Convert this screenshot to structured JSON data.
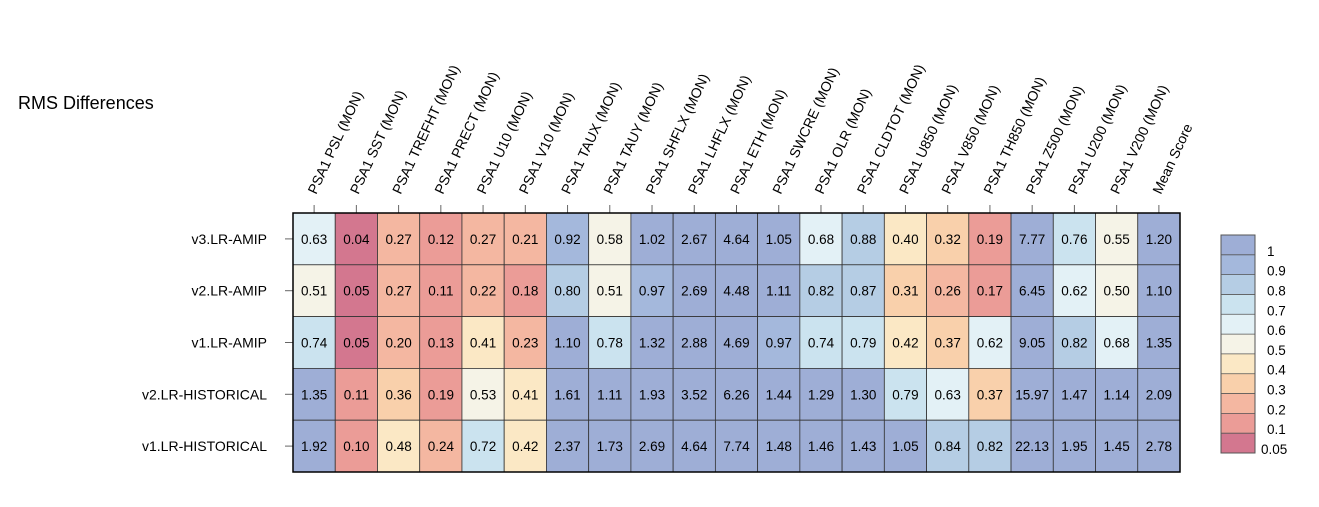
{
  "chart_data": {
    "type": "heatmap",
    "title": "RMS Differences",
    "columns": [
      "PSA1 PSL (MON)",
      "PSA1 SST (MON)",
      "PSA1 TREFHT (MON)",
      "PSA1 PRECT (MON)",
      "PSA1 U10 (MON)",
      "PSA1 V10 (MON)",
      "PSA1 TAUX (MON)",
      "PSA1 TAUY (MON)",
      "PSA1 SHFLX (MON)",
      "PSA1 LHFLX (MON)",
      "PSA1 ETH (MON)",
      "PSA1 SWCRE (MON)",
      "PSA1 OLR (MON)",
      "PSA1 CLDTOT (MON)",
      "PSA1 U850 (MON)",
      "PSA1 V850 (MON)",
      "PSA1 TH850 (MON)",
      "PSA1 Z500 (MON)",
      "PSA1 U200 (MON)",
      "PSA1 V200 (MON)",
      "Mean Score"
    ],
    "rows": [
      "v3.LR-AMIP",
      "v2.LR-AMIP",
      "v1.LR-AMIP",
      "v2.LR-HISTORICAL",
      "v1.LR-HISTORICAL"
    ],
    "values": [
      [
        "0.63",
        "0.04",
        "0.27",
        "0.12",
        "0.27",
        "0.21",
        "0.92",
        "0.58",
        "1.02",
        "2.67",
        "4.64",
        "1.05",
        "0.68",
        "0.88",
        "0.40",
        "0.32",
        "0.19",
        "7.77",
        "0.76",
        "0.55",
        "1.20"
      ],
      [
        "0.51",
        "0.05",
        "0.27",
        "0.11",
        "0.22",
        "0.18",
        "0.80",
        "0.51",
        "0.97",
        "2.69",
        "4.48",
        "1.11",
        "0.82",
        "0.87",
        "0.31",
        "0.26",
        "0.17",
        "6.45",
        "0.62",
        "0.50",
        "1.10"
      ],
      [
        "0.74",
        "0.05",
        "0.20",
        "0.13",
        "0.41",
        "0.23",
        "1.10",
        "0.78",
        "1.32",
        "2.88",
        "4.69",
        "0.97",
        "0.74",
        "0.79",
        "0.42",
        "0.37",
        "0.62",
        "9.05",
        "0.82",
        "0.68",
        "1.35"
      ],
      [
        "1.35",
        "0.11",
        "0.36",
        "0.19",
        "0.53",
        "0.41",
        "1.61",
        "1.11",
        "1.93",
        "3.52",
        "6.26",
        "1.44",
        "1.29",
        "1.30",
        "0.79",
        "0.63",
        "0.37",
        "15.97",
        "1.47",
        "1.14",
        "2.09"
      ],
      [
        "1.92",
        "0.10",
        "0.48",
        "0.24",
        "0.72",
        "0.42",
        "2.37",
        "1.73",
        "2.69",
        "4.64",
        "7.74",
        "1.48",
        "1.46",
        "1.43",
        "1.05",
        "0.84",
        "0.82",
        "22.13",
        "1.95",
        "1.45",
        "2.78"
      ]
    ],
    "colorbar": {
      "labels": [
        "1",
        "0.9",
        "0.8",
        "0.7",
        "0.6",
        "0.5",
        "0.4",
        "0.3",
        "0.2",
        "0.1",
        "0.05"
      ],
      "levels": [
        0.05,
        0.1,
        0.2,
        0.3,
        0.4,
        0.5,
        0.6,
        0.7,
        0.8,
        0.9,
        1
      ],
      "colors": [
        "#d3778f",
        "#eb9c97",
        "#f4b7a1",
        "#f9d0ab",
        "#fbe8c5",
        "#f5f3e7",
        "#e3f1f6",
        "#cbe3ef",
        "#b5cde4",
        "#a4b8dc",
        "#9eaed6"
      ]
    }
  }
}
